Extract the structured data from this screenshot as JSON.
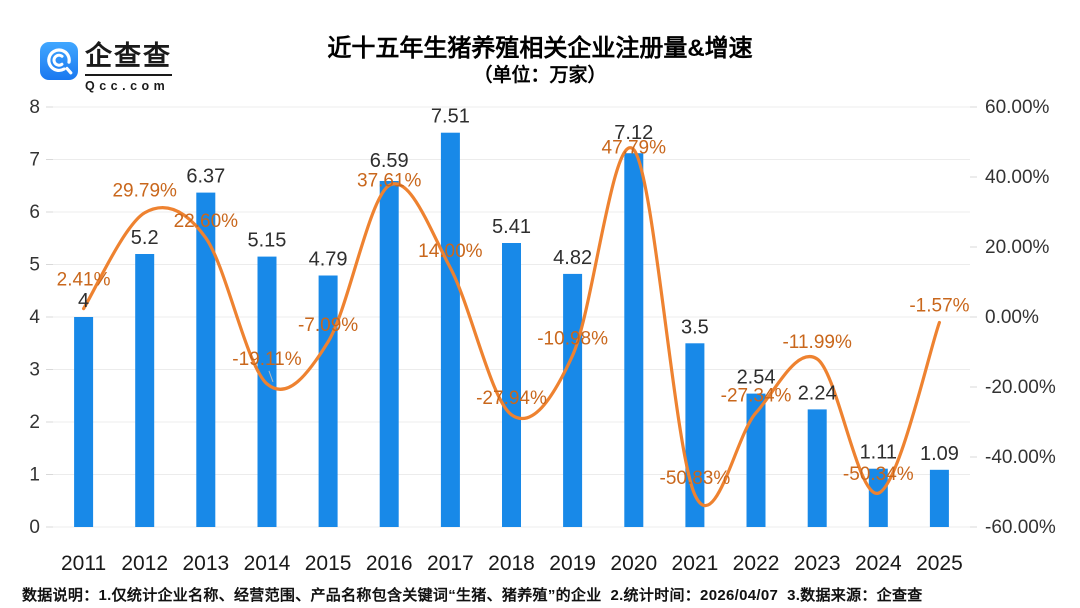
{
  "logo": {
    "name": "企查查",
    "domain": "Qcc.com"
  },
  "header": {
    "title": "近十五年生猪养殖相关企业注册量&增速",
    "subtitle": "（单位：万家）"
  },
  "colors": {
    "bar": "#1889E8",
    "line": "#EE8230",
    "line_label": "#C9671C",
    "grid": "#ECECEC",
    "tick": "#D8D8D8",
    "logo_blue_top": "#41A7FF",
    "logo_blue_bottom": "#1A78F0"
  },
  "chart_data": {
    "type": "bar",
    "categories": [
      "2011",
      "2012",
      "2013",
      "2014",
      "2015",
      "2016",
      "2017",
      "2018",
      "2019",
      "2020",
      "2021",
      "2022",
      "2023",
      "2024",
      "2025"
    ],
    "title": "近十五年生猪养殖相关企业注册量&增速",
    "subtitle": "（单位：万家）",
    "grid": true,
    "legend_position": "none",
    "series": [
      {
        "name": "注册量",
        "type": "bar",
        "axis": "left",
        "values": [
          4,
          5.2,
          6.37,
          5.15,
          4.79,
          6.59,
          7.51,
          5.41,
          4.82,
          7.12,
          3.5,
          2.54,
          2.24,
          1.11,
          1.09
        ],
        "labels": [
          "4",
          "5.2",
          "6.37",
          "5.15",
          "4.79",
          "6.59",
          "7.51",
          "5.41",
          "4.82",
          "7.12",
          "3.5",
          "2.54",
          "2.24",
          "1.11",
          "1.09"
        ]
      },
      {
        "name": "增速",
        "type": "line",
        "axis": "right",
        "values": [
          2.41,
          29.79,
          22.6,
          -19.11,
          -7.09,
          37.61,
          14.0,
          -27.94,
          -10.98,
          47.79,
          -50.83,
          -27.34,
          -11.99,
          -50.34,
          -1.57
        ],
        "labels": [
          "2.41%",
          "29.79%",
          "22.60%",
          "-19.11%",
          "-7.09%",
          "37.61%",
          "14.00%",
          "-27.94%",
          "-10.98%",
          "47.79%",
          "-50.83%",
          "-27.34%",
          "-11.99%",
          "-50.34%",
          "-1.57%"
        ]
      }
    ],
    "left_axis": {
      "min": 0,
      "max": 8,
      "tick_labels": [
        "0",
        "1",
        "2",
        "3",
        "4",
        "5",
        "6",
        "7",
        "8"
      ]
    },
    "right_axis": {
      "min": -60,
      "max": 60,
      "tick_labels": [
        "-60.00%",
        "-40.00%",
        "-20.00%",
        "0.00%",
        "20.00%",
        "40.00%",
        "60.00%"
      ]
    }
  },
  "footer": {
    "note": "数据说明：1.仅统计企业名称、经营范围、产品名称包含关键词“生猪、猪养殖”的企业  2.统计时间：2026/04/07  3.数据来源：企查查"
  }
}
